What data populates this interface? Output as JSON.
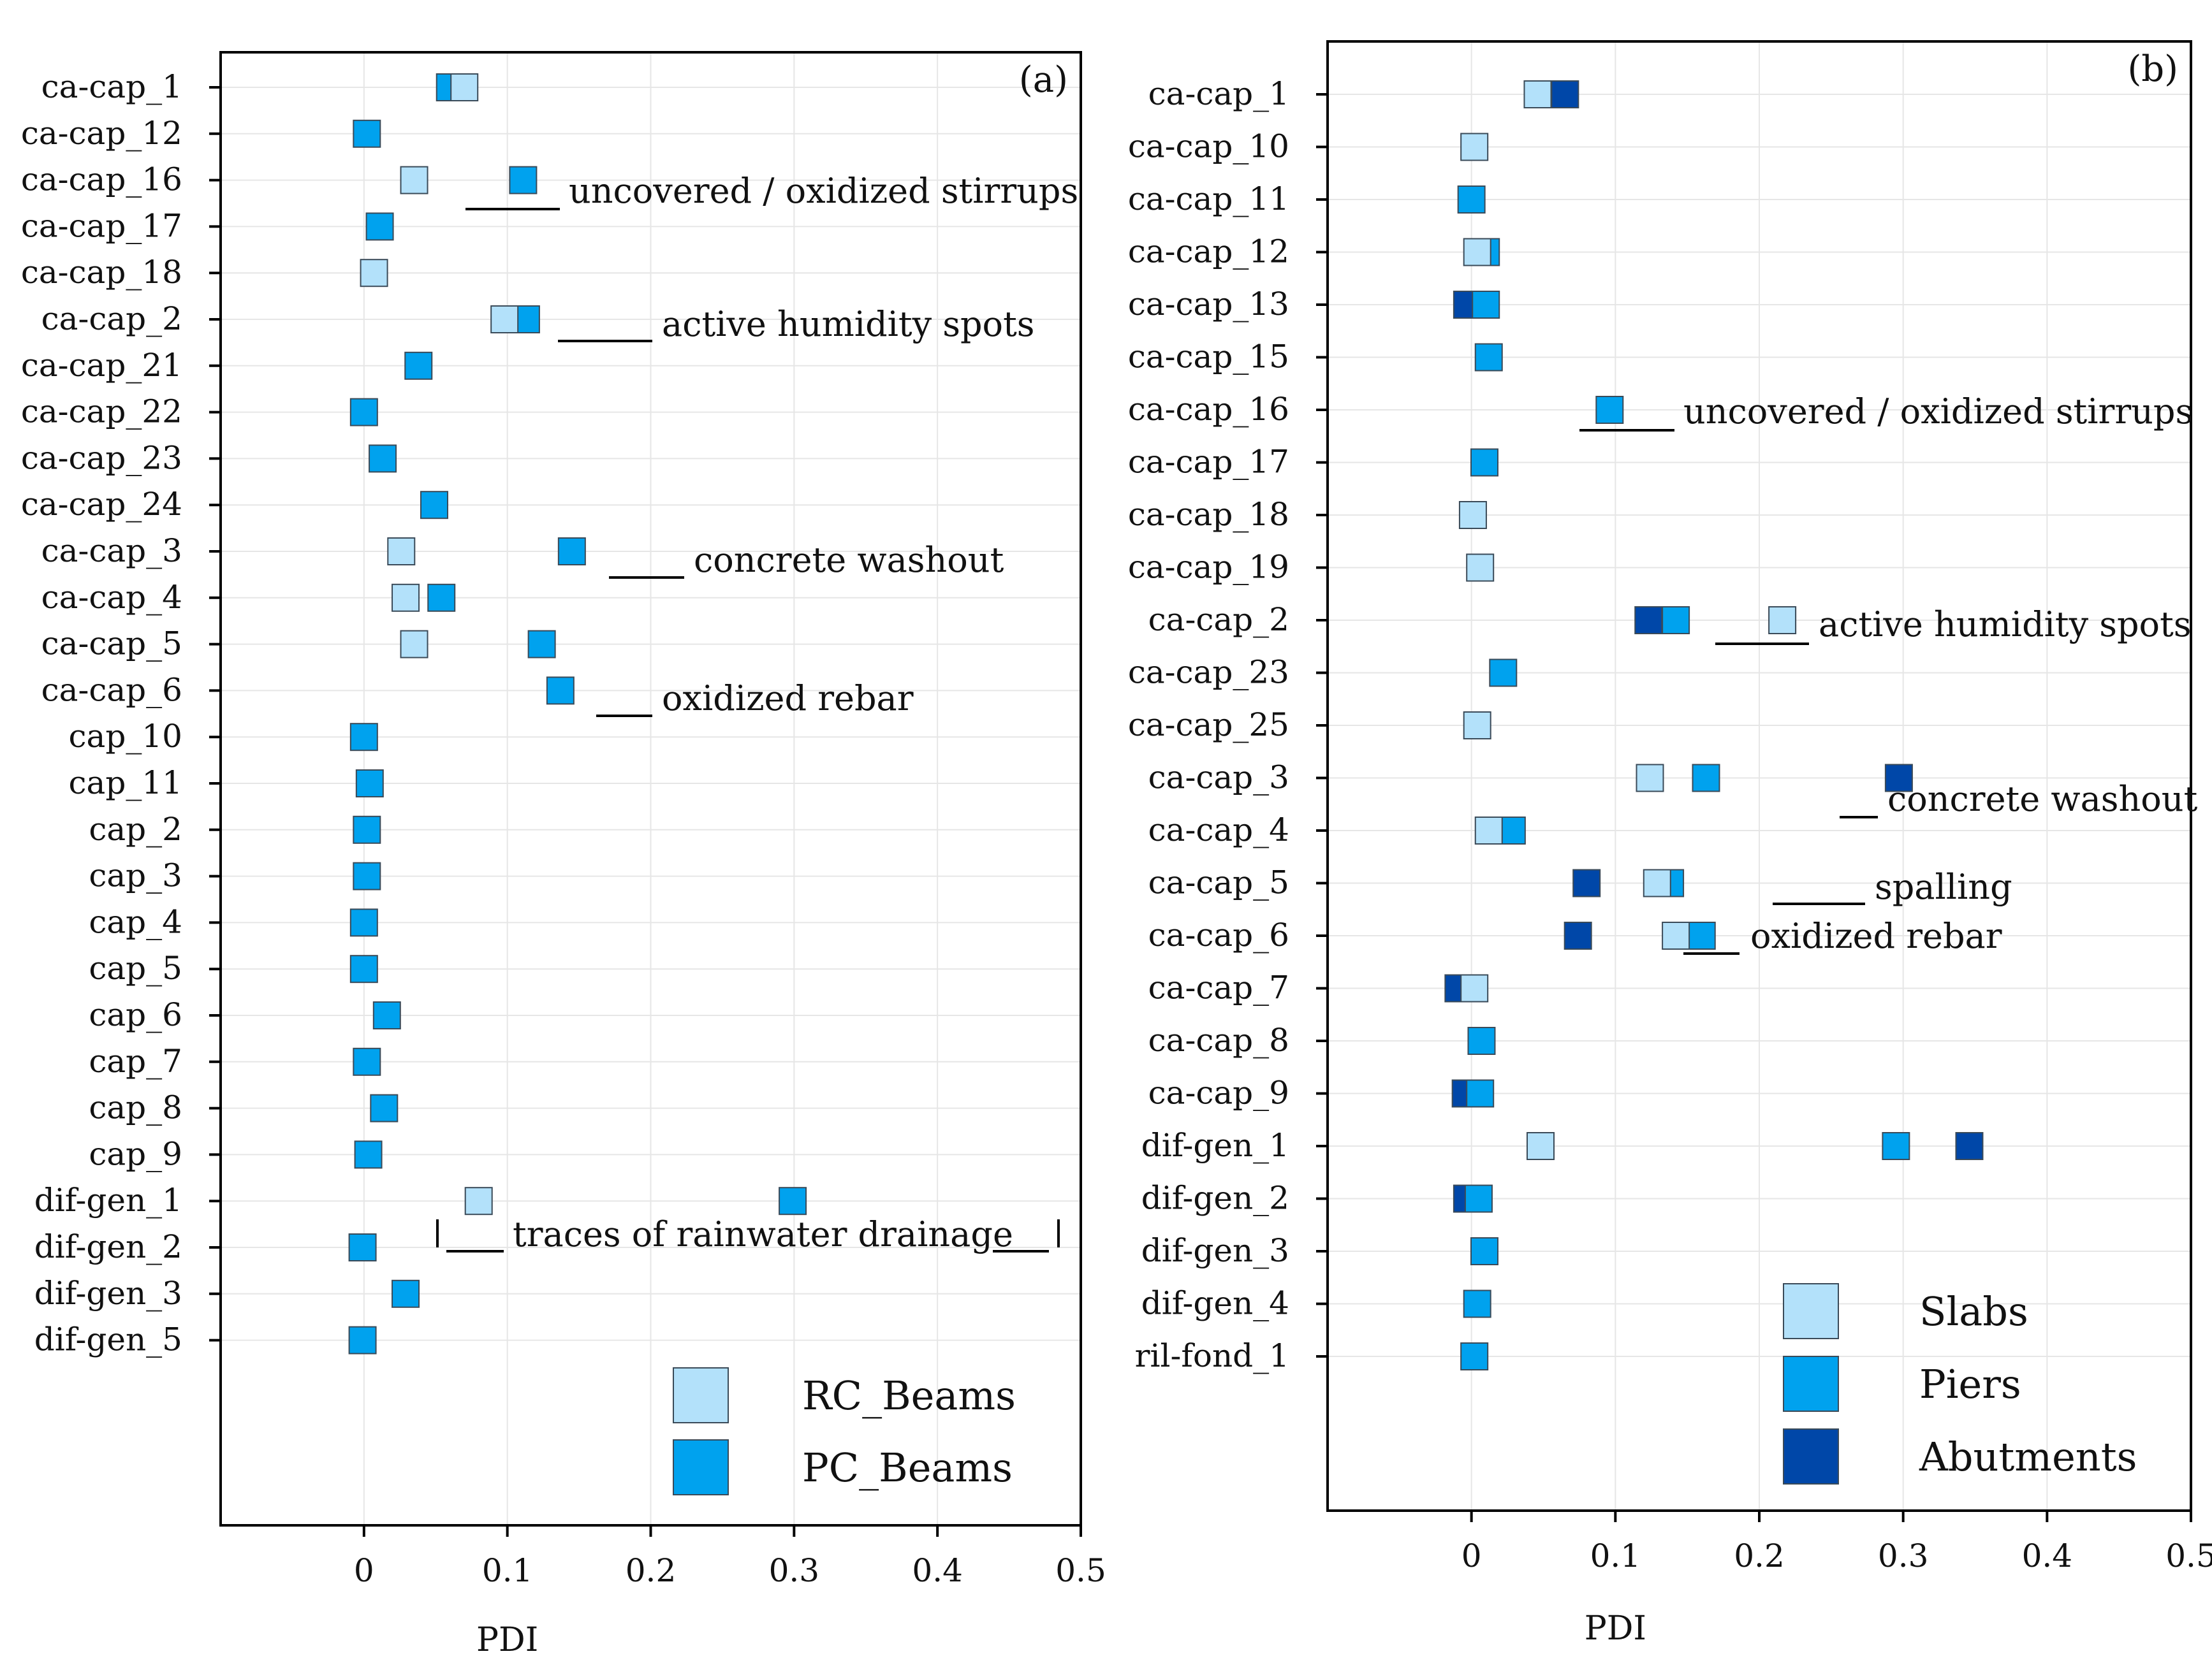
{
  "colors": {
    "slabs": "#b3e1fa",
    "rc_beams": "#b3e1fa",
    "piers": "#00a2ee",
    "pc_beams": "#00a2ee",
    "abutments": "#0047a8"
  },
  "chart_data": [
    {
      "type": "scatter",
      "panel_label": "(a)",
      "xlabel": "PDI",
      "xlim": [
        -0.1,
        0.5
      ],
      "xticks": [
        0,
        0.1,
        0.2,
        0.3,
        0.4,
        0.5
      ],
      "xtick_labels": [
        "0",
        "0.1",
        "0.2",
        "0.3",
        "0.4",
        "0.5"
      ],
      "legend_position": "bottom-right",
      "categories": [
        "ca-cap_1",
        "ca-cap_12",
        "ca-cap_16",
        "ca-cap_17",
        "ca-cap_18",
        "ca-cap_2",
        "ca-cap_21",
        "ca-cap_22",
        "ca-cap_23",
        "ca-cap_24",
        "ca-cap_3",
        "ca-cap_4",
        "ca-cap_5",
        "ca-cap_6",
        "cap_10",
        "cap_11",
        "cap_2",
        "cap_3",
        "cap_4",
        "cap_5",
        "cap_6",
        "cap_7",
        "cap_8",
        "cap_9",
        "dif-gen_1",
        "dif-gen_2",
        "dif-gen_3",
        "dif-gen_5"
      ],
      "series": [
        {
          "name": "PC_Beams",
          "color_key": "pc_beams",
          "values": [
            0.06,
            0.002,
            0.111,
            0.011,
            null,
            0.113,
            0.038,
            0.0,
            0.013,
            0.049,
            0.145,
            0.054,
            0.124,
            0.137,
            0.0,
            0.004,
            0.002,
            0.002,
            0.0,
            0.0,
            0.016,
            0.002,
            0.014,
            0.003,
            0.299,
            -0.001,
            0.029,
            -0.001
          ]
        },
        {
          "name": "RC_Beams",
          "color_key": "rc_beams",
          "values": [
            0.07,
            null,
            0.035,
            null,
            0.007,
            0.098,
            null,
            null,
            null,
            null,
            0.026,
            0.029,
            0.035,
            null,
            null,
            null,
            null,
            null,
            null,
            null,
            null,
            null,
            null,
            null,
            0.08,
            null,
            null,
            null
          ]
        }
      ],
      "legend": [
        {
          "label": "RC_Beams",
          "color_key": "rc_beams"
        },
        {
          "label": "PC_Beams",
          "color_key": "pc_beams"
        }
      ],
      "annotations": [
        {
          "row": 2,
          "text": "uncovered / oxidized stirrups"
        },
        {
          "row": 5,
          "text": "active humidity spots"
        },
        {
          "row": 10,
          "text": "concrete washout"
        },
        {
          "row": 13,
          "text": "oxidized rebar"
        },
        {
          "row": 24,
          "text": "traces of rainwater drainage"
        }
      ]
    },
    {
      "type": "scatter",
      "panel_label": "(b)",
      "xlabel": "PDI",
      "xlim": [
        -0.1,
        0.5
      ],
      "xticks": [
        0,
        0.1,
        0.2,
        0.3,
        0.4,
        0.5
      ],
      "xtick_labels": [
        "0",
        "0.1",
        "0.2",
        "0.3",
        "0.4",
        "0.5"
      ],
      "legend_position": "bottom-right",
      "categories": [
        "ca-cap_1",
        "ca-cap_10",
        "ca-cap_11",
        "ca-cap_12",
        "ca-cap_13",
        "ca-cap_15",
        "ca-cap_16",
        "ca-cap_17",
        "ca-cap_18",
        "ca-cap_19",
        "ca-cap_2",
        "ca-cap_23",
        "ca-cap_25",
        "ca-cap_3",
        "ca-cap_4",
        "ca-cap_5",
        "ca-cap_6",
        "ca-cap_7",
        "ca-cap_8",
        "ca-cap_9",
        "dif-gen_1",
        "dif-gen_2",
        "dif-gen_3",
        "dif-gen_4",
        "ril-fond_1"
      ],
      "series": [
        {
          "name": "Abutments",
          "color_key": "abutments",
          "values": [
            0.065,
            null,
            null,
            null,
            -0.003,
            null,
            null,
            null,
            null,
            null,
            0.123,
            null,
            null,
            0.297,
            null,
            0.08,
            0.074,
            -0.009,
            null,
            -0.004,
            0.346,
            -0.003,
            null,
            null,
            null
          ]
        },
        {
          "name": "Piers",
          "color_key": "piers",
          "values": [
            null,
            null,
            0.0,
            0.01,
            0.01,
            0.012,
            0.096,
            0.009,
            null,
            null,
            0.142,
            0.022,
            null,
            0.163,
            0.028,
            0.138,
            0.16,
            null,
            0.007,
            0.006,
            0.295,
            0.005,
            0.009,
            0.004,
            0.002
          ]
        },
        {
          "name": "Slabs",
          "color_key": "slabs",
          "values": [
            0.046,
            0.002,
            null,
            0.004,
            null,
            null,
            null,
            null,
            0.001,
            0.006,
            0.216,
            null,
            0.004,
            0.124,
            0.012,
            0.129,
            0.142,
            0.002,
            null,
            null,
            0.048,
            null,
            null,
            null,
            null
          ]
        }
      ],
      "legend": [
        {
          "label": "Slabs",
          "color_key": "slabs"
        },
        {
          "label": "Piers",
          "color_key": "piers"
        },
        {
          "label": "Abutments",
          "color_key": "abutments"
        }
      ],
      "annotations": [
        {
          "row": 6,
          "text": "uncovered / oxidized stirrups"
        },
        {
          "row": 10,
          "text": "active humidity spots"
        },
        {
          "row": 13,
          "text": "concrete washout"
        },
        {
          "row": 15,
          "text": "spalling"
        },
        {
          "row": 16,
          "text": "oxidized rebar"
        }
      ]
    }
  ]
}
